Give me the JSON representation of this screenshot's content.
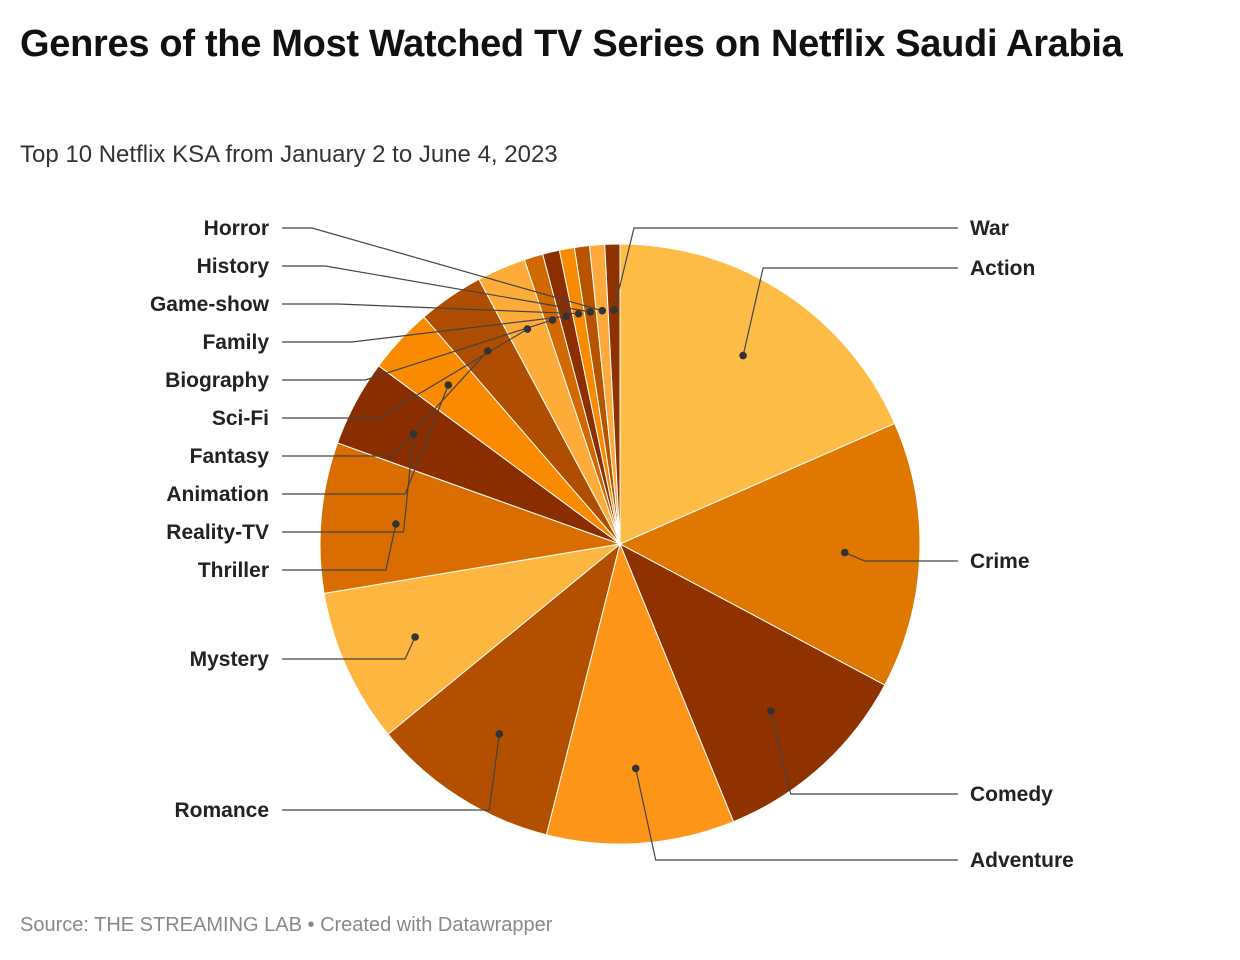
{
  "header": {
    "title": "Genres of the Most Watched TV Series on Netflix Saudi Arabia",
    "subtitle": "Top 10 Netflix KSA from January 2 to June 4, 2023"
  },
  "footer": {
    "source": "Source: THE STREAMING LAB",
    "separator": " • ",
    "credit": "Created with Datawrapper"
  },
  "chart_data": {
    "type": "pie",
    "start_angle": "12 o'clock",
    "direction": "clockwise",
    "slices": [
      {
        "label": "Action",
        "share": 18.2,
        "color": "#FDBC46",
        "side": "right"
      },
      {
        "label": "Crime",
        "share": 14.2,
        "color": "#E07800",
        "side": "right"
      },
      {
        "label": "Comedy",
        "share": 10.9,
        "color": "#8F3200",
        "side": "right"
      },
      {
        "label": "Adventure",
        "share": 10.0,
        "color": "#FD9518",
        "side": "right"
      },
      {
        "label": "Romance",
        "share": 10.0,
        "color": "#B35000",
        "side": "left"
      },
      {
        "label": "Mystery",
        "share": 8.2,
        "color": "#FDB640",
        "side": "left"
      },
      {
        "label": "Thriller",
        "share": 8.0,
        "color": "#D96D00",
        "side": "left"
      },
      {
        "label": "Reality-TV",
        "share": 4.6,
        "color": "#8A2E00",
        "side": "left"
      },
      {
        "label": "Animation",
        "share": 3.5,
        "color": "#FA8A00",
        "side": "left"
      },
      {
        "label": "Fantasy",
        "share": 3.5,
        "color": "#AF4D00",
        "side": "left"
      },
      {
        "label": "Sci-Fi",
        "share": 2.6,
        "color": "#FDAC3A",
        "side": "left"
      },
      {
        "label": "Biography",
        "share": 1.0,
        "color": "#D26800",
        "side": "left"
      },
      {
        "label": "Family",
        "share": 0.9,
        "color": "#8C2F00",
        "side": "left"
      },
      {
        "label": "Game-show",
        "share": 0.8,
        "color": "#F98B00",
        "side": "left"
      },
      {
        "label": "History",
        "share": 0.8,
        "color": "#B65400",
        "side": "left"
      },
      {
        "label": "Horror",
        "share": 0.8,
        "color": "#FDA93E",
        "side": "left"
      },
      {
        "label": "War",
        "share": 0.8,
        "color": "#8E3300",
        "side": "right"
      }
    ]
  }
}
